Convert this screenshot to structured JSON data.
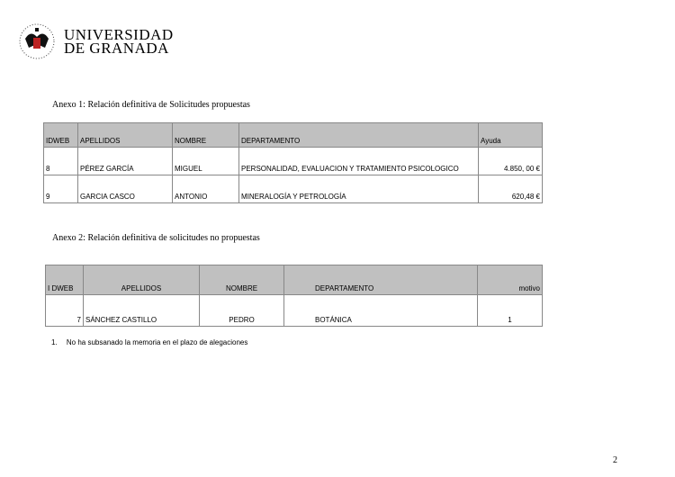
{
  "header": {
    "logo_text_line1": "UNIVERSIDAD",
    "logo_text_line2": "DE GRANADA"
  },
  "annex1": {
    "title": "Anexo 1: Relación definitiva de Solicitudes propuestas",
    "columns": [
      "IDWEB",
      "APELLIDOS",
      "NOMBRE",
      "DEPARTAMENTO",
      "Ayuda"
    ],
    "rows": [
      [
        "8",
        "PÉREZ GARCÍA",
        "MIGUEL",
        "PERSONALIDAD, EVALUACION Y TRATAMIENTO PSICOLOGICO",
        "4.850, 00 €"
      ],
      [
        "9",
        "GARCIA CASCO",
        "ANTONIO",
        "MINERALOGÍA Y PETROLOGÍA",
        "620,48 €"
      ]
    ]
  },
  "annex2": {
    "title": "Anexo 2: Relación definitiva de solicitudes no propuestas",
    "columns": [
      "I DWEB",
      "APELLIDOS",
      "NOMBRE",
      "DEPARTAMENTO",
      "motivo"
    ],
    "rows": [
      [
        "7",
        "SÁNCHEZ CASTILLO",
        "PEDRO",
        "BOTÁNICA",
        "1"
      ]
    ]
  },
  "footnote": {
    "number": "1.",
    "text": "No ha subsanado la memoria en el plazo de alegaciones"
  },
  "page_number": "2"
}
